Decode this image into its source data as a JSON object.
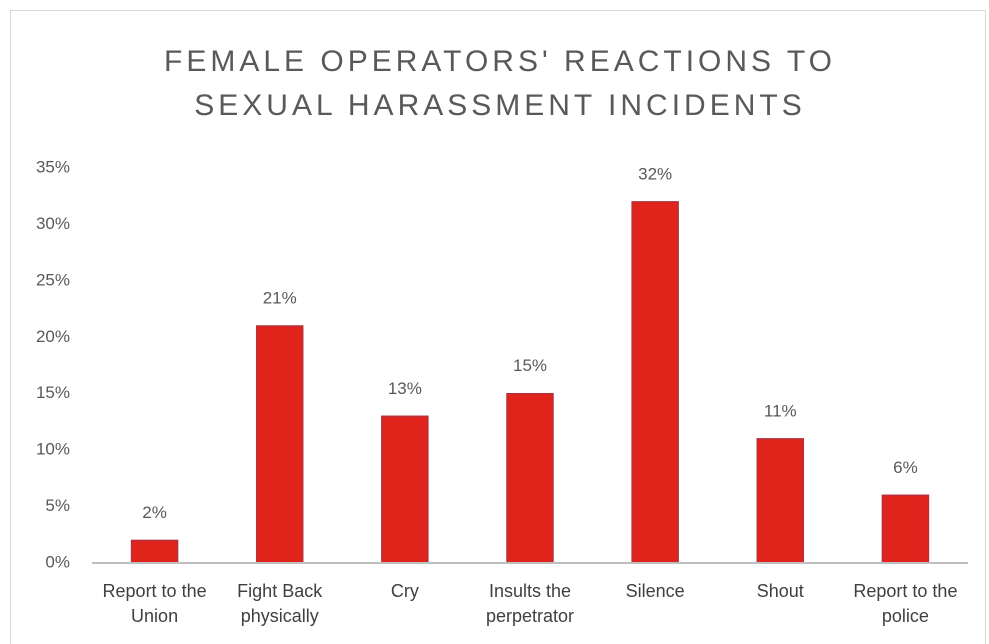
{
  "chart_data": {
    "type": "bar",
    "title": "FEMALE OPERATORS' REACTIONS TO SEXUAL HARASSMENT INCIDENTS",
    "categories": [
      "Report to the Union",
      "Fight Back physically",
      "Cry",
      "Insults the perpetrator",
      "Silence",
      "Shout",
      "Report to the police"
    ],
    "values": [
      2,
      21,
      13,
      15,
      32,
      11,
      6
    ],
    "value_labels": [
      "2%",
      "21%",
      "13%",
      "15%",
      "32%",
      "11%",
      "6%"
    ],
    "color": "#e0241b",
    "ylim": [
      0,
      35
    ],
    "yticks": [
      {
        "value": 0,
        "label": "0%"
      },
      {
        "value": 5,
        "label": "5%"
      },
      {
        "value": 10,
        "label": "10%"
      },
      {
        "value": 15,
        "label": "15%"
      },
      {
        "value": 20,
        "label": "20%"
      },
      {
        "value": 25,
        "label": "25%"
      },
      {
        "value": 30,
        "label": "30%"
      },
      {
        "value": 35,
        "label": "35%"
      }
    ],
    "grid": false
  }
}
